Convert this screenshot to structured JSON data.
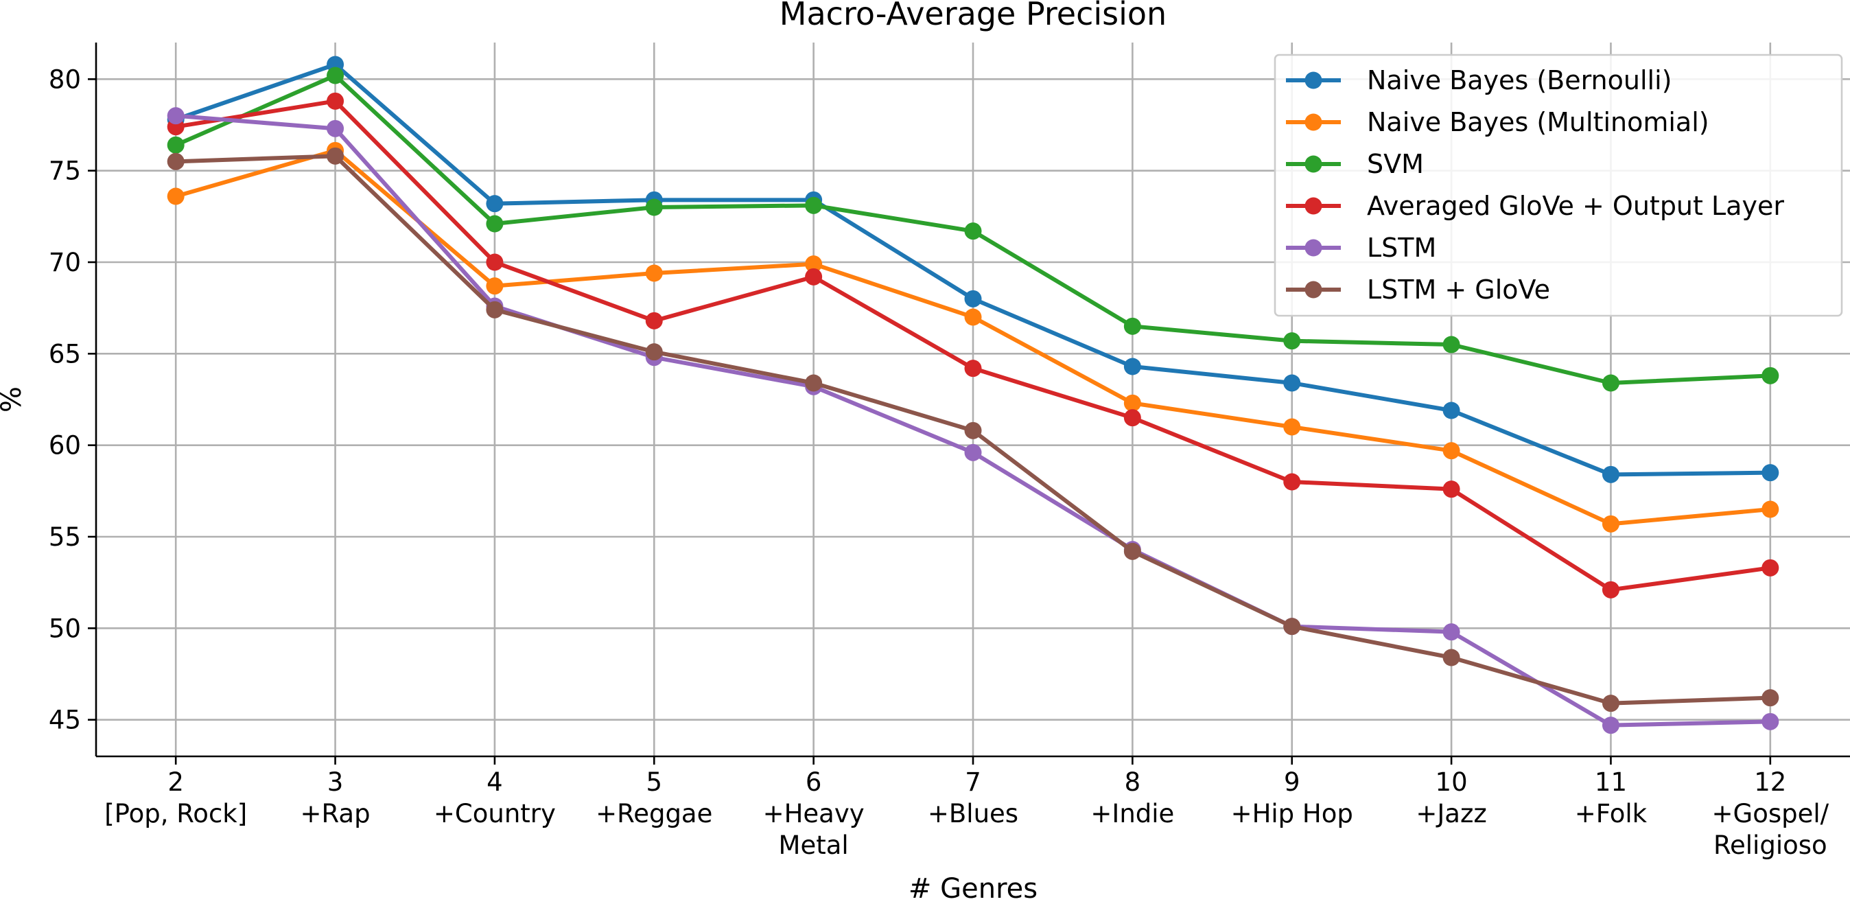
{
  "chart_data": {
    "type": "line",
    "title": "Macro-Average Precision",
    "xlabel": "# Genres",
    "ylabel": "%",
    "x": [
      2,
      3,
      4,
      5,
      6,
      7,
      8,
      9,
      10,
      11,
      12
    ],
    "x_tick_labels": [
      [
        "2",
        "[Pop, Rock]"
      ],
      [
        "3",
        "+Rap"
      ],
      [
        "4",
        "+Country"
      ],
      [
        "5",
        "+Reggae"
      ],
      [
        "6",
        "+Heavy",
        "Metal"
      ],
      [
        "7",
        "+Blues"
      ],
      [
        "8",
        "+Indie"
      ],
      [
        "9",
        "+Hip Hop"
      ],
      [
        "10",
        "+Jazz"
      ],
      [
        "11",
        "+Folk"
      ],
      [
        "12",
        "+Gospel/",
        "Religioso"
      ]
    ],
    "y_ticks": [
      45,
      50,
      55,
      60,
      65,
      70,
      75,
      80
    ],
    "xlim": [
      1.5,
      12.5
    ],
    "ylim": [
      43,
      82
    ],
    "grid": true,
    "legend_position": "top-right",
    "series": [
      {
        "name": "Naive Bayes (Bernoulli)",
        "color": "#1f77b4",
        "values": [
          77.8,
          80.8,
          73.2,
          73.4,
          73.4,
          68.0,
          64.3,
          63.4,
          61.9,
          58.4,
          58.5
        ]
      },
      {
        "name": "Naive Bayes (Multinomial)",
        "color": "#ff7f0e",
        "values": [
          73.6,
          76.1,
          68.7,
          69.4,
          69.9,
          67.0,
          62.3,
          61.0,
          59.7,
          55.7,
          56.5
        ]
      },
      {
        "name": "SVM",
        "color": "#2ca02c",
        "values": [
          76.4,
          80.2,
          72.1,
          73.0,
          73.1,
          71.7,
          66.5,
          65.7,
          65.5,
          63.4,
          63.8
        ]
      },
      {
        "name": "Averaged GloVe + Output Layer",
        "color": "#d62728",
        "values": [
          77.4,
          78.8,
          70.0,
          66.8,
          69.2,
          64.2,
          61.5,
          58.0,
          57.6,
          52.1,
          53.3
        ]
      },
      {
        "name": "LSTM",
        "color": "#9467bd",
        "values": [
          78.0,
          77.3,
          67.6,
          64.8,
          63.2,
          59.6,
          54.3,
          50.1,
          49.8,
          44.7,
          44.9
        ]
      },
      {
        "name": "LSTM + GloVe",
        "color": "#8c564b",
        "values": [
          75.5,
          75.8,
          67.4,
          65.1,
          63.4,
          60.8,
          54.2,
          50.1,
          48.4,
          45.9,
          46.2
        ]
      }
    ]
  }
}
